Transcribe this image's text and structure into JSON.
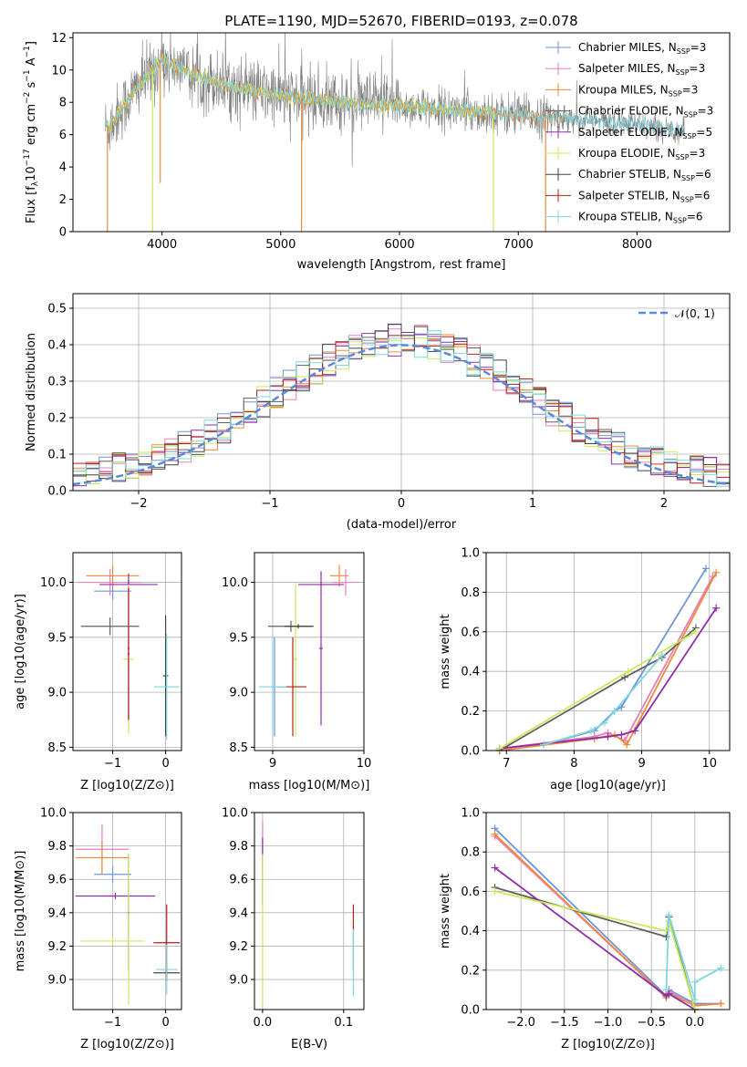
{
  "title": "PLATE=1190, MJD=52670, FIBERID=0193, z=0.078",
  "model_colors": [
    "#6f95d8",
    "#e57fbd",
    "#f08a3a",
    "#606060",
    "#8e2fa8",
    "#c9ea5a",
    "#444444",
    "#b51f1f",
    "#7fd6e0"
  ],
  "chart_data": [
    {
      "id": "spectrum",
      "type": "line",
      "xlabel": "wavelength [Angstrom, rest frame]",
      "ylabel": "Flux [f_λ10^-17 erg cm^-2 s^-1 A^-1]",
      "xlim": [
        3250,
        8780
      ],
      "ylim": [
        0,
        12.3
      ],
      "xticks": [
        4000,
        5000,
        6000,
        7000,
        8000
      ],
      "yticks": [
        0,
        2,
        4,
        6,
        8,
        10,
        12
      ],
      "grid": false,
      "legend_position": "top-right",
      "continuum": {
        "x": [
          3550,
          3800,
          4000,
          4300,
          4600,
          5000,
          5500,
          6000,
          6500,
          7000,
          7400,
          8000,
          8400
        ],
        "y": [
          6.5,
          9.0,
          10.6,
          9.6,
          8.9,
          8.4,
          8.0,
          7.8,
          7.5,
          7.2,
          7.0,
          6.6,
          6.2
        ]
      },
      "legend": [
        {
          "name_pre": "Chabrier MILES, N",
          "name_sub": "SSP",
          "name_post": "=3"
        },
        {
          "name_pre": "Salpeter MILES, N",
          "name_sub": "SSP",
          "name_post": "=3"
        },
        {
          "name_pre": "Kroupa MILES, N",
          "name_sub": "SSP",
          "name_post": "=3"
        },
        {
          "name_pre": "Chabrier ELODIE, N",
          "name_sub": "SSP",
          "name_post": "=3"
        },
        {
          "name_pre": "Salpeter ELODIE, N",
          "name_sub": "SSP",
          "name_post": "=5"
        },
        {
          "name_pre": "Kroupa ELODIE, N",
          "name_sub": "SSP",
          "name_post": "=3"
        },
        {
          "name_pre": "Chabrier STELIB, N",
          "name_sub": "SSP",
          "name_post": "=6"
        },
        {
          "name_pre": "Salpeter STELIB, N",
          "name_sub": "SSP",
          "name_post": "=6"
        },
        {
          "name_pre": "Kroupa STELIB, N",
          "name_sub": "SSP",
          "name_post": "=6"
        }
      ]
    },
    {
      "id": "residuals",
      "type": "bar",
      "xlabel": "(data-model)/error",
      "ylabel": "Normed distribution",
      "xlim": [
        -2.5,
        2.5
      ],
      "ylim": [
        0,
        0.54
      ],
      "xticks": [
        -2,
        -1,
        0,
        1,
        2
      ],
      "yticks": [
        0.0,
        0.1,
        0.2,
        0.3,
        0.4,
        0.5
      ],
      "grid": true,
      "bin_width": 0.1,
      "legend": [
        {
          "name": "𝒩(0, 1)"
        }
      ],
      "legend_position": "top-right",
      "gauss": {
        "mean": 0,
        "sigma": 1
      }
    },
    {
      "id": "age-vs-z",
      "type": "scatter",
      "xlabel": "Z [log10(Z/Z⊙)]",
      "ylabel": "age  [log10(age/yr)]",
      "xlim": [
        -1.75,
        0.3
      ],
      "ylim": [
        8.47,
        10.27
      ],
      "xticks": [
        -1,
        0
      ],
      "yticks": [
        8.5,
        9.0,
        9.5,
        10.0
      ],
      "grid": true,
      "points": [
        {
          "c": 0,
          "x": -1.0,
          "xe": 0.35,
          "y": 9.92,
          "ye": 0.08
        },
        {
          "c": 1,
          "x": -1.05,
          "xe": 0.6,
          "y": 10.0,
          "ye": 0.12
        },
        {
          "c": 2,
          "x": -1.0,
          "xe": 0.5,
          "y": 10.06,
          "ye": 0.1
        },
        {
          "c": 3,
          "x": -1.05,
          "xe": 0.55,
          "y": 9.6,
          "ye": 0.08
        },
        {
          "c": 4,
          "x": -0.7,
          "xe": 0.55,
          "y": 9.98,
          "ye": 0.05
        },
        {
          "c": 4,
          "x": -0.7,
          "xe": 0.02,
          "y": 9.4,
          "ye": 0.68
        },
        {
          "c": 5,
          "x": -0.7,
          "xe": 0.1,
          "y": 9.3,
          "ye": 0.68
        },
        {
          "c": 6,
          "x": 0.0,
          "xe": 0.05,
          "y": 9.15,
          "ye": 0.55
        },
        {
          "c": 8,
          "x": 0.02,
          "xe": 0.24,
          "y": 9.05,
          "ye": 0.48
        },
        {
          "c": 7,
          "x": -0.7,
          "xe": 0.02,
          "y": 9.35,
          "ye": 0.6
        }
      ]
    },
    {
      "id": "age-vs-mass",
      "type": "scatter",
      "xlabel": "mass [log10(M/M⊙)]",
      "ylabel": "",
      "xlim": [
        8.8,
        10.0
      ],
      "ylim": [
        8.47,
        10.27
      ],
      "xticks": [
        9,
        10
      ],
      "yticks": [
        8.5,
        9.0,
        9.5,
        10.0
      ],
      "grid": true,
      "points": [
        {
          "c": 0,
          "x": 9.02,
          "xe": 0.12,
          "y": 9.05,
          "ye": 0.45
        },
        {
          "c": 1,
          "x": 9.8,
          "xe": 0.15,
          "y": 10.0,
          "ye": 0.12
        },
        {
          "c": 2,
          "x": 9.73,
          "xe": 0.1,
          "y": 10.06,
          "ye": 0.1
        },
        {
          "c": 3,
          "x": 9.2,
          "xe": 0.25,
          "y": 9.6,
          "ye": 0.05
        },
        {
          "c": 4,
          "x": 9.53,
          "xe": 0.25,
          "y": 9.98,
          "ye": 0.02
        },
        {
          "c": 4,
          "x": 9.53,
          "xe": 0.02,
          "y": 9.4,
          "ye": 0.7
        },
        {
          "c": 5,
          "x": 9.25,
          "xe": 0.02,
          "y": 9.3,
          "ye": 0.7
        },
        {
          "c": 7,
          "x": 9.22,
          "xe": 0.15,
          "y": 9.05,
          "ye": 0.45
        },
        {
          "c": 8,
          "x": 9.0,
          "xe": 0.15,
          "y": 9.05,
          "ye": 0.45
        },
        {
          "c": 6,
          "x": 9.28,
          "xe": 0.15,
          "y": 9.6,
          "ye": 0.02
        }
      ]
    },
    {
      "id": "weight-vs-age",
      "type": "line",
      "xlabel": "age  [log10(age/yr)]",
      "ylabel": "mass weight",
      "xlim": [
        6.7,
        10.3
      ],
      "ylim": [
        0,
        1.0
      ],
      "xticks": [
        7,
        8,
        9,
        10
      ],
      "yticks": [
        0.0,
        0.2,
        0.4,
        0.6,
        0.8,
        1.0
      ],
      "grid": true,
      "series": [
        {
          "c": 0,
          "x": [
            7.55,
            8.3,
            8.6,
            8.7,
            9.95
          ],
          "y": [
            0.03,
            0.1,
            0.2,
            0.22,
            0.92
          ]
        },
        {
          "c": 1,
          "x": [
            6.9,
            8.3,
            8.5,
            8.75,
            10.05
          ],
          "y": [
            0.01,
            0.07,
            0.09,
            0.05,
            0.88
          ]
        },
        {
          "c": 2,
          "x": [
            6.9,
            8.3,
            8.6,
            8.78,
            10.1
          ],
          "y": [
            0.0,
            0.06,
            0.08,
            0.03,
            0.9
          ]
        },
        {
          "c": 3,
          "x": [
            6.9,
            8.75,
            9.3,
            9.8
          ],
          "y": [
            0.0,
            0.37,
            0.47,
            0.62
          ]
        },
        {
          "c": 4,
          "x": [
            6.9,
            8.5,
            8.7,
            8.9,
            10.1
          ],
          "y": [
            0.01,
            0.07,
            0.08,
            0.1,
            0.72
          ]
        },
        {
          "c": 5,
          "x": [
            6.9,
            8.8,
            9.8
          ],
          "y": [
            0.01,
            0.4,
            0.6
          ]
        },
        {
          "c": 8,
          "x": [
            7.55,
            8.25,
            8.45,
            8.6,
            9.3
          ],
          "y": [
            0.03,
            0.1,
            0.14,
            0.2,
            0.48
          ]
        }
      ]
    },
    {
      "id": "mass-vs-z",
      "type": "scatter",
      "xlabel": "Z [log10(Z/Z⊙)]",
      "ylabel": "mass [log10(M/M⊙)]",
      "xlim": [
        -1.75,
        0.3
      ],
      "ylim": [
        8.82,
        10.0
      ],
      "xticks": [
        -1,
        0
      ],
      "yticks": [
        9.0,
        9.2,
        9.4,
        9.6,
        9.8,
        10.0
      ],
      "grid": true,
      "points": [
        {
          "c": 0,
          "x": -1.0,
          "xe": 0.35,
          "y": 9.63,
          "ye": 0.05
        },
        {
          "c": 1,
          "x": -1.2,
          "xe": 0.5,
          "y": 9.78,
          "ye": 0.15
        },
        {
          "c": 2,
          "x": -1.2,
          "xe": 0.5,
          "y": 9.73,
          "ye": 0.1
        },
        {
          "c": 4,
          "x": -0.95,
          "xe": 0.75,
          "y": 9.5,
          "ye": 0.02
        },
        {
          "c": 4,
          "x": -0.7,
          "xe": 0.02,
          "y": 9.4,
          "ye": 0.35
        },
        {
          "c": 5,
          "x": -1.0,
          "xe": 0.6,
          "y": 9.23,
          "ye": 0.02
        },
        {
          "c": 5,
          "x": -0.7,
          "xe": 0.02,
          "y": 9.3,
          "ye": 0.45
        },
        {
          "c": 6,
          "x": 0.02,
          "xe": 0.25,
          "y": 9.04,
          "ye": 0.02
        },
        {
          "c": 7,
          "x": 0.02,
          "xe": 0.25,
          "y": 9.22,
          "ye": 0.23
        },
        {
          "c": 8,
          "x": 0.02,
          "xe": 0.2,
          "y": 9.06,
          "ye": 0.15
        }
      ]
    },
    {
      "id": "mass-vs-ebv",
      "type": "scatter",
      "xlabel": "E(B-V)",
      "ylabel": "",
      "xlim": [
        -0.01,
        0.125
      ],
      "ylim": [
        8.82,
        10.0
      ],
      "xticks": [
        0.0,
        0.1
      ],
      "yticks": [
        9.0,
        9.2,
        9.4,
        9.6,
        9.8,
        10.0
      ],
      "grid": true,
      "points": [
        {
          "c": 1,
          "x": 0.0,
          "xe": 0,
          "y": 9.8,
          "ye": 0.15
        },
        {
          "c": 4,
          "x": 0.0,
          "xe": 0,
          "y": 9.65,
          "ye": 0.2
        },
        {
          "c": 5,
          "x": 0.0,
          "xe": 0,
          "y": 9.3,
          "ye": 0.45
        },
        {
          "c": 7,
          "x": 0.112,
          "xe": 0,
          "y": 9.25,
          "ye": 0.2
        },
        {
          "c": 8,
          "x": 0.112,
          "xe": 0,
          "y": 9.1,
          "ye": 0.2
        }
      ]
    },
    {
      "id": "weight-vs-z",
      "type": "line",
      "xlabel": "Z [log10(Z/Z⊙)]",
      "ylabel": "mass weight",
      "xlim": [
        -2.4,
        0.4
      ],
      "ylim": [
        0,
        1.0
      ],
      "xticks": [
        -2.0,
        -1.5,
        -1.0,
        -0.5,
        0.0
      ],
      "yticks": [
        0.0,
        0.2,
        0.4,
        0.6,
        0.8,
        1.0
      ],
      "grid": true,
      "series": [
        {
          "c": 0,
          "x": [
            -2.3,
            -0.33,
            -0.3,
            0.0,
            0.3
          ],
          "y": [
            0.92,
            0.07,
            0.1,
            0.03,
            0.03
          ]
        },
        {
          "c": 1,
          "x": [
            -2.3,
            -0.33,
            -0.3,
            0.0,
            0.3
          ],
          "y": [
            0.88,
            0.06,
            0.09,
            0.02,
            0.03
          ]
        },
        {
          "c": 2,
          "x": [
            -2.3,
            -0.33,
            -0.3,
            0.0,
            0.3
          ],
          "y": [
            0.89,
            0.06,
            0.08,
            0.02,
            0.03
          ]
        },
        {
          "c": 3,
          "x": [
            -2.3,
            -0.33,
            -0.3,
            0.0
          ],
          "y": [
            0.62,
            0.37,
            0.47,
            0.0
          ]
        },
        {
          "c": 4,
          "x": [
            -2.3,
            -0.33,
            -0.3,
            0.0
          ],
          "y": [
            0.72,
            0.07,
            0.08,
            0.0
          ]
        },
        {
          "c": 5,
          "x": [
            -2.3,
            -0.33,
            -0.3,
            0.0
          ],
          "y": [
            0.6,
            0.4,
            0.45,
            0.0
          ]
        },
        {
          "c": 8,
          "x": [
            -0.33,
            -0.3,
            0.0,
            0.0,
            0.3
          ],
          "y": [
            0.1,
            0.48,
            0.05,
            0.14,
            0.21
          ]
        }
      ]
    }
  ]
}
